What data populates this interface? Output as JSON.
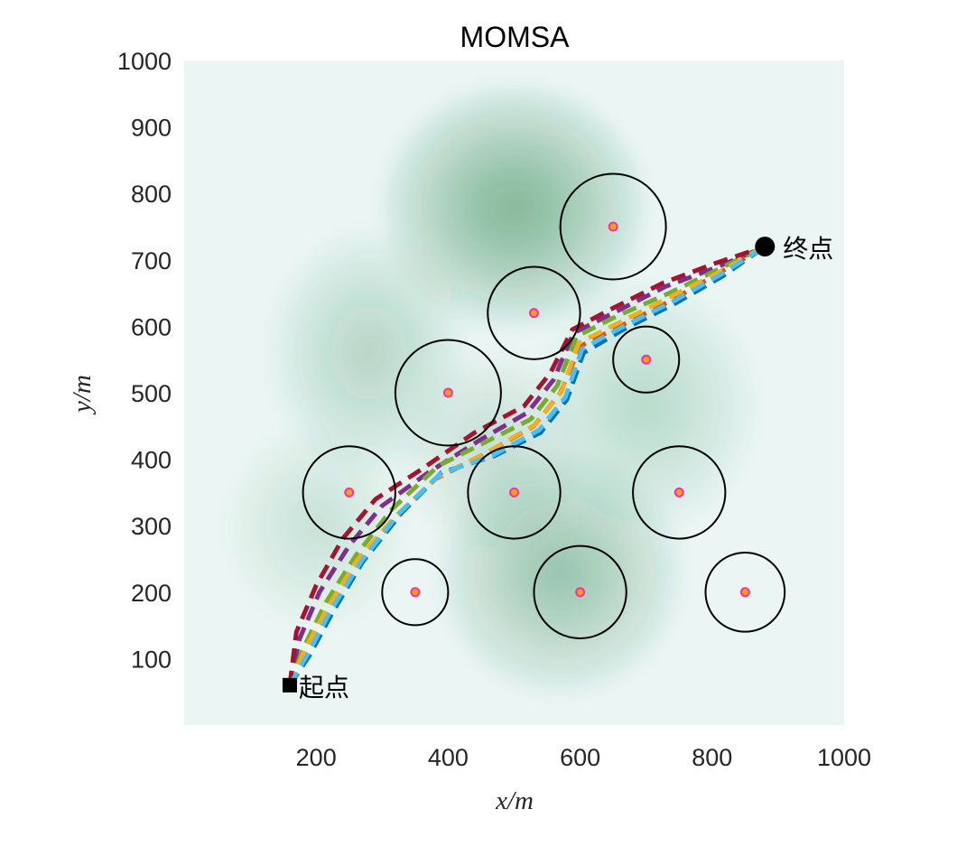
{
  "chart_data": {
    "type": "scatter",
    "title": "MOMSA",
    "xlabel": "x/m",
    "ylabel": "y/m",
    "xlim": [
      0,
      1000
    ],
    "ylim": [
      0,
      1000
    ],
    "xticks": [
      200,
      400,
      600,
      800,
      1000
    ],
    "yticks": [
      100,
      200,
      300,
      400,
      500,
      600,
      700,
      800,
      900,
      1000
    ],
    "grid": false,
    "start": {
      "label": "起点",
      "x": 160,
      "y": 60
    },
    "end": {
      "label": "终点",
      "x": 880,
      "y": 720
    },
    "threat_circles": [
      {
        "x": 650,
        "y": 750,
        "r": 80
      },
      {
        "x": 530,
        "y": 620,
        "r": 70
      },
      {
        "x": 700,
        "y": 550,
        "r": 50
      },
      {
        "x": 400,
        "y": 500,
        "r": 80
      },
      {
        "x": 250,
        "y": 350,
        "r": 70
      },
      {
        "x": 500,
        "y": 350,
        "r": 70
      },
      {
        "x": 750,
        "y": 350,
        "r": 70
      },
      {
        "x": 350,
        "y": 200,
        "r": 50
      },
      {
        "x": 600,
        "y": 200,
        "r": 70
      },
      {
        "x": 850,
        "y": 200,
        "r": 60
      }
    ],
    "terrain_peaks": [
      {
        "x": 500,
        "y": 780,
        "h": 1.0,
        "sx": 120,
        "sy": 110
      },
      {
        "x": 280,
        "y": 560,
        "h": 0.45,
        "sx": 90,
        "sy": 110
      },
      {
        "x": 700,
        "y": 480,
        "h": 0.4,
        "sx": 100,
        "sy": 110
      },
      {
        "x": 470,
        "y": 410,
        "h": 0.3,
        "sx": 80,
        "sy": 90
      },
      {
        "x": 570,
        "y": 230,
        "h": 0.75,
        "sx": 110,
        "sy": 110
      },
      {
        "x": 200,
        "y": 300,
        "h": 0.25,
        "sx": 80,
        "sy": 90
      }
    ],
    "series": [
      {
        "color": "#7e2f8e",
        "x": [
          160,
          175,
          205,
          250,
          300,
          370,
          450,
          520,
          560,
          590,
          650,
          730,
          810,
          880
        ],
        "y": [
          60,
          130,
          200,
          270,
          330,
          380,
          430,
          470,
          520,
          590,
          620,
          660,
          690,
          720
        ]
      },
      {
        "color": "#d95319",
        "x": [
          160,
          185,
          220,
          265,
          320,
          380,
          460,
          530,
          570,
          600,
          660,
          740,
          810,
          880
        ],
        "y": [
          60,
          110,
          180,
          250,
          310,
          370,
          410,
          450,
          500,
          570,
          600,
          640,
          680,
          720
        ]
      },
      {
        "color": "#0072bd",
        "x": [
          160,
          190,
          225,
          270,
          330,
          390,
          470,
          540,
          580,
          605,
          665,
          745,
          815,
          880
        ],
        "y": [
          60,
          105,
          170,
          245,
          320,
          380,
          405,
          440,
          490,
          560,
          595,
          635,
          675,
          720
        ]
      },
      {
        "color": "#77ac30",
        "x": [
          160,
          180,
          215,
          260,
          315,
          385,
          455,
          525,
          565,
          595,
          655,
          735,
          808,
          880
        ],
        "y": [
          60,
          115,
          185,
          255,
          325,
          390,
          425,
          460,
          510,
          585,
          615,
          650,
          685,
          720
        ]
      },
      {
        "color": "#edb120",
        "x": [
          160,
          182,
          218,
          262,
          318,
          382,
          462,
          532,
          572,
          598,
          658,
          738,
          812,
          880
        ],
        "y": [
          60,
          112,
          178,
          248,
          312,
          372,
          412,
          452,
          502,
          575,
          605,
          645,
          682,
          720
        ]
      },
      {
        "color": "#a2142f",
        "x": [
          160,
          170,
          200,
          240,
          290,
          360,
          440,
          515,
          555,
          588,
          645,
          725,
          805,
          880
        ],
        "y": [
          60,
          140,
          210,
          280,
          340,
          385,
          440,
          480,
          530,
          595,
          625,
          665,
          695,
          720
        ]
      },
      {
        "color": "#4dbeee",
        "x": [
          160,
          188,
          222,
          268,
          325,
          388,
          468,
          538,
          578,
          603,
          662,
          742,
          813,
          880
        ],
        "y": [
          60,
          108,
          172,
          246,
          318,
          378,
          406,
          444,
          494,
          566,
          598,
          638,
          678,
          720
        ]
      }
    ]
  }
}
